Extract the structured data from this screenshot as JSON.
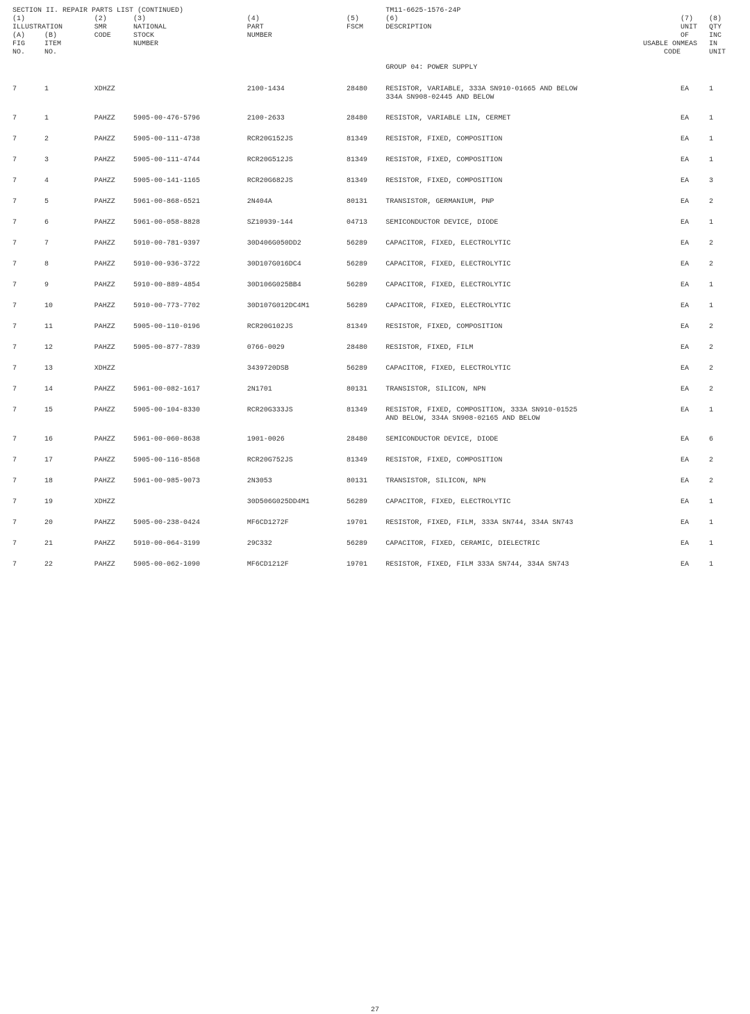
{
  "header": {
    "section_title": "SECTION II. REPAIR PARTS LIST (CONTINUED)",
    "tm_number": "TM11-6625-1576-24P",
    "cols": {
      "c1": {
        "n": "(1)",
        "l1": "ILLUSTRATION",
        "a_n": "(A)",
        "a_l1": "FIG",
        "a_l2": "NO."
      },
      "c2": {
        "b_n": "(B)",
        "b_l1": "ITEM",
        "b_l2": "NO."
      },
      "c3": {
        "n": "(2)",
        "l1": "SMR",
        "l2": "CODE"
      },
      "c4": {
        "n": "(3)",
        "l1": "NATIONAL",
        "l2": "STOCK",
        "l3": "NUMBER"
      },
      "c5": {
        "n": "(4)",
        "l1": "PART",
        "l2": "NUMBER"
      },
      "c6": {
        "n": "(5)",
        "l1": "FSCM"
      },
      "c7": {
        "n": "(6)",
        "l1": "DESCRIPTION"
      },
      "c8": {
        "l1": "USABLE ON",
        "l2": "CODE"
      },
      "c9": {
        "n": "(7)",
        "l1": "UNIT",
        "l2": "OF",
        "l3": "MEAS"
      },
      "c10": {
        "n": "(8)",
        "l1": "QTY",
        "l2": "INC",
        "l3": "IN",
        "l4": "UNIT"
      }
    }
  },
  "group_title": "GROUP 04: POWER SUPPLY",
  "rows": [
    {
      "fig": "7",
      "item": "1",
      "smr": "XDHZZ",
      "nsn": "",
      "part": "2100-1434",
      "fscm": "28480",
      "desc": "RESISTOR, VARIABLE, 333A SN910-01665 AND BELOW\n334A SN908-02445 AND BELOW",
      "uoc": "",
      "um": "EA",
      "qty": "1"
    },
    {
      "fig": "7",
      "item": "1",
      "smr": "PAHZZ",
      "nsn": "5905-00-476-5796",
      "part": "2100-2633",
      "fscm": "28480",
      "desc": "RESISTOR, VARIABLE LIN, CERMET",
      "uoc": "",
      "um": "EA",
      "qty": "1"
    },
    {
      "fig": "7",
      "item": "2",
      "smr": "PAHZZ",
      "nsn": "5905-00-111-4738",
      "part": "RCR20G152JS",
      "fscm": "81349",
      "desc": "RESISTOR, FIXED, COMPOSITION",
      "uoc": "",
      "um": "EA",
      "qty": "1"
    },
    {
      "fig": "7",
      "item": "3",
      "smr": "PAHZZ",
      "nsn": "5905-00-111-4744",
      "part": "RCR20G512JS",
      "fscm": "81349",
      "desc": "RESISTOR, FIXED, COMPOSITION",
      "uoc": "",
      "um": "EA",
      "qty": "1"
    },
    {
      "fig": "7",
      "item": "4",
      "smr": "PAHZZ",
      "nsn": "5905-00-141-1165",
      "part": "RCR20G682JS",
      "fscm": "81349",
      "desc": "RESISTOR, FIXED, COMPOSITION",
      "uoc": "",
      "um": "EA",
      "qty": "3"
    },
    {
      "fig": "7",
      "item": "5",
      "smr": "PAHZZ",
      "nsn": "5961-00-868-6521",
      "part": "2N404A",
      "fscm": "80131",
      "desc": "TRANSISTOR, GERMANIUM, PNP",
      "uoc": "",
      "um": "EA",
      "qty": "2"
    },
    {
      "fig": "7",
      "item": "6",
      "smr": "PAHZZ",
      "nsn": "5961-00-058-8828",
      "part": "SZ10939-144",
      "fscm": "04713",
      "desc": "SEMICONDUCTOR DEVICE, DIODE",
      "uoc": "",
      "um": "EA",
      "qty": "1"
    },
    {
      "fig": "7",
      "item": "7",
      "smr": "PAHZZ",
      "nsn": "5910-00-781-9397",
      "part": "30D406G050DD2",
      "fscm": "56289",
      "desc": "CAPACITOR, FIXED, ELECTROLYTIC",
      "uoc": "",
      "um": "EA",
      "qty": "2"
    },
    {
      "fig": "7",
      "item": "8",
      "smr": "PAHZZ",
      "nsn": "5910-00-936-3722",
      "part": "30D107G016DC4",
      "fscm": "56289",
      "desc": "CAPACITOR, FIXED, ELECTROLYTIC",
      "uoc": "",
      "um": "EA",
      "qty": "2"
    },
    {
      "fig": "7",
      "item": "9",
      "smr": "PAHZZ",
      "nsn": "5910-00-889-4854",
      "part": "30D106G025BB4",
      "fscm": "56289",
      "desc": "CAPACITOR, FIXED, ELECTROLYTIC",
      "uoc": "",
      "um": "EA",
      "qty": "1"
    },
    {
      "fig": "7",
      "item": "10",
      "smr": "PAHZZ",
      "nsn": "5910-00-773-7702",
      "part": "30D107G012DC4M1",
      "fscm": "56289",
      "desc": "CAPACITOR, FIXED, ELECTROLYTIC",
      "uoc": "",
      "um": "EA",
      "qty": "1"
    },
    {
      "fig": "7",
      "item": "11",
      "smr": "PAHZZ",
      "nsn": "5905-00-110-0196",
      "part": "RCR20G102JS",
      "fscm": "81349",
      "desc": "RESISTOR, FIXED, COMPOSITION",
      "uoc": "",
      "um": "EA",
      "qty": "2"
    },
    {
      "fig": "7",
      "item": "12",
      "smr": "PAHZZ",
      "nsn": "5905-00-877-7839",
      "part": "0766-0029",
      "fscm": "28480",
      "desc": "RESISTOR, FIXED, FILM",
      "uoc": "",
      "um": "EA",
      "qty": "2"
    },
    {
      "fig": "7",
      "item": "13",
      "smr": "XDHZZ",
      "nsn": "",
      "part": "3439720DSB",
      "fscm": "56289",
      "desc": "CAPACITOR, FIXED, ELECTROLYTIC",
      "uoc": "",
      "um": "EA",
      "qty": "2"
    },
    {
      "fig": "7",
      "item": "14",
      "smr": "PAHZZ",
      "nsn": "5961-00-082-1617",
      "part": "2N1701",
      "fscm": "80131",
      "desc": "TRANSISTOR, SILICON, NPN",
      "uoc": "",
      "um": "EA",
      "qty": "2"
    },
    {
      "fig": "7",
      "item": "15",
      "smr": "PAHZZ",
      "nsn": "5905-00-104-8330",
      "part": "RCR20G333JS",
      "fscm": "81349",
      "desc": "RESISTOR, FIXED, COMPOSITION, 333A SN910-01525\nAND BELOW, 334A SN908-02165 AND BELOW",
      "uoc": "",
      "um": "EA",
      "qty": "1"
    },
    {
      "fig": "7",
      "item": "16",
      "smr": "PAHZZ",
      "nsn": "5961-00-060-8638",
      "part": "1901-0026",
      "fscm": "28480",
      "desc": "SEMICONDUCTOR DEVICE, DIODE",
      "uoc": "",
      "um": "EA",
      "qty": "6"
    },
    {
      "fig": "7",
      "item": "17",
      "smr": "PAHZZ",
      "nsn": "5905-00-116-8568",
      "part": "RCR20G752JS",
      "fscm": "81349",
      "desc": "RESISTOR, FIXED, COMPOSITION",
      "uoc": "",
      "um": "EA",
      "qty": "2"
    },
    {
      "fig": "7",
      "item": "18",
      "smr": "PAHZZ",
      "nsn": "5961-00-985-9073",
      "part": "2N3053",
      "fscm": "80131",
      "desc": "TRANSISTOR, SILICON, NPN",
      "uoc": "",
      "um": "EA",
      "qty": "2"
    },
    {
      "fig": "7",
      "item": "19",
      "smr": "XDHZZ",
      "nsn": "",
      "part": "30D506G025DD4M1",
      "fscm": "56289",
      "desc": "CAPACITOR, FIXED, ELECTROLYTIC",
      "uoc": "",
      "um": "EA",
      "qty": "1"
    },
    {
      "fig": "7",
      "item": "20",
      "smr": "PAHZZ",
      "nsn": "5905-00-238-0424",
      "part": "MF6CD1272F",
      "fscm": "19701",
      "desc": "RESISTOR, FIXED, FILM, 333A SN744, 334A SN743",
      "uoc": "",
      "um": "EA",
      "qty": "1"
    },
    {
      "fig": "7",
      "item": "21",
      "smr": "PAHZZ",
      "nsn": "5910-00-064-3199",
      "part": "29C332",
      "fscm": "56289",
      "desc": "CAPACITOR, FIXED, CERAMIC, DIELECTRIC",
      "uoc": "",
      "um": "EA",
      "qty": "1"
    },
    {
      "fig": "7",
      "item": "22",
      "smr": "PAHZZ",
      "nsn": "5905-00-062-1090",
      "part": "MF6CD1212F",
      "fscm": "19701",
      "desc": "RESISTOR, FIXED, FILM 333A SN744, 334A SN743",
      "uoc": "",
      "um": "EA",
      "qty": "1"
    }
  ],
  "page_number": "27"
}
